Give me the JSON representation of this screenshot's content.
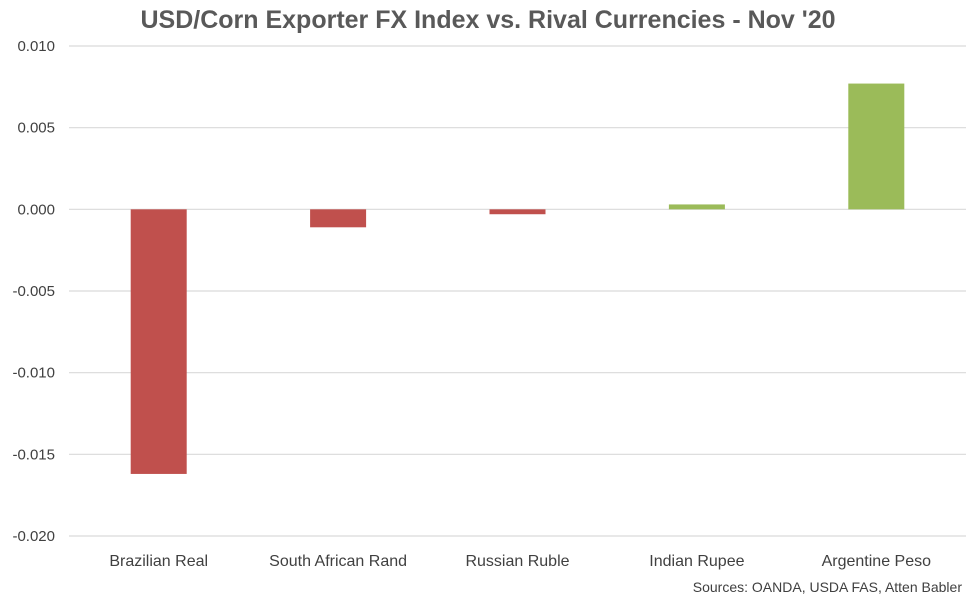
{
  "chart_data": {
    "type": "bar",
    "title": "USD/Corn Exporter FX Index vs. Rival Currencies - Nov '20",
    "categories": [
      "Brazilian Real",
      "South African Rand",
      "Russian Ruble",
      "Indian Rupee",
      "Argentine Peso"
    ],
    "values": [
      -0.0162,
      -0.0011,
      -0.0003,
      0.0003,
      0.0077
    ],
    "ylim": [
      -0.02,
      0.01
    ],
    "yticks": [
      "0.010",
      "0.005",
      "0.000",
      "-0.005",
      "-0.010",
      "-0.015",
      "-0.020"
    ],
    "grid": true,
    "colors": {
      "negative": "#c0504d",
      "positive": "#9bbb59",
      "grid": "#d9d9d9"
    },
    "source": "Sources: OANDA, USDA FAS, Atten Babler"
  }
}
